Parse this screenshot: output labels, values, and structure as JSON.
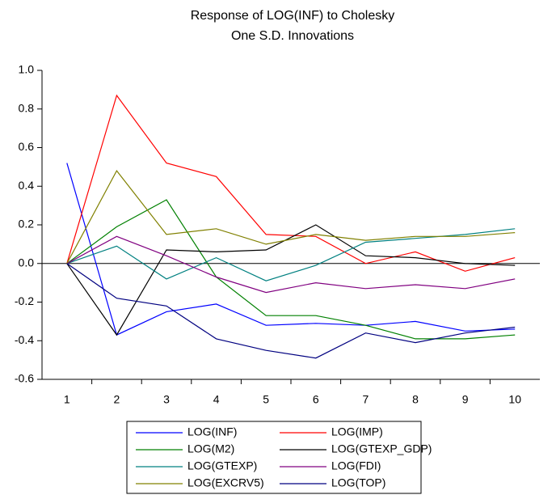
{
  "chart_data": {
    "type": "line",
    "title": [
      "Response of LOG(INF) to Cholesky",
      "One S.D. Innovations"
    ],
    "categories": [
      "1",
      "2",
      "3",
      "4",
      "5",
      "6",
      "7",
      "8",
      "9",
      "10"
    ],
    "series": [
      {
        "name": "LOG(INF)",
        "color": "#0000ff",
        "values": [
          0.52,
          -0.37,
          -0.25,
          -0.21,
          -0.32,
          -0.31,
          -0.32,
          -0.3,
          -0.35,
          -0.34
        ]
      },
      {
        "name": "LOG(IMP)",
        "color": "#ff0000",
        "values": [
          0,
          0.87,
          0.52,
          0.45,
          0.15,
          0.14,
          0.0,
          0.06,
          -0.04,
          0.03
        ]
      },
      {
        "name": "LOG(M2)",
        "color": "#008000",
        "values": [
          0,
          0.19,
          0.33,
          -0.07,
          -0.27,
          -0.27,
          -0.32,
          -0.39,
          -0.39,
          -0.37
        ]
      },
      {
        "name": "LOG(GTEXP_GDP)",
        "color": "#000000",
        "values": [
          0,
          -0.37,
          0.07,
          0.06,
          0.07,
          0.2,
          0.04,
          0.03,
          0.0,
          -0.01
        ]
      },
      {
        "name": "LOG(GTEXP)",
        "color": "#008080",
        "values": [
          0,
          0.09,
          -0.08,
          0.03,
          -0.09,
          -0.01,
          0.11,
          0.13,
          0.15,
          0.18
        ]
      },
      {
        "name": "LOG(FDI)",
        "color": "#800080",
        "values": [
          0,
          0.14,
          0.04,
          -0.07,
          -0.15,
          -0.1,
          -0.13,
          -0.11,
          -0.13,
          -0.08
        ]
      },
      {
        "name": "LOG(EXCRV5)",
        "color": "#808000",
        "values": [
          0,
          0.48,
          0.15,
          0.18,
          0.1,
          0.15,
          0.12,
          0.14,
          0.14,
          0.16
        ]
      },
      {
        "name": "LOG(TOP)",
        "color": "#000080",
        "values": [
          0,
          -0.18,
          -0.22,
          -0.39,
          -0.45,
          -0.49,
          -0.36,
          -0.41,
          -0.36,
          -0.33
        ]
      }
    ],
    "ylim": [
      -0.6,
      1.0
    ],
    "yticks": [
      -0.6,
      -0.4,
      -0.2,
      {
        "value": 0,
        "label": "0.0"
      },
      0.2,
      0.4,
      0.6,
      0.8,
      {
        "value": 1,
        "label": "1.0"
      }
    ],
    "zero_line": true
  }
}
